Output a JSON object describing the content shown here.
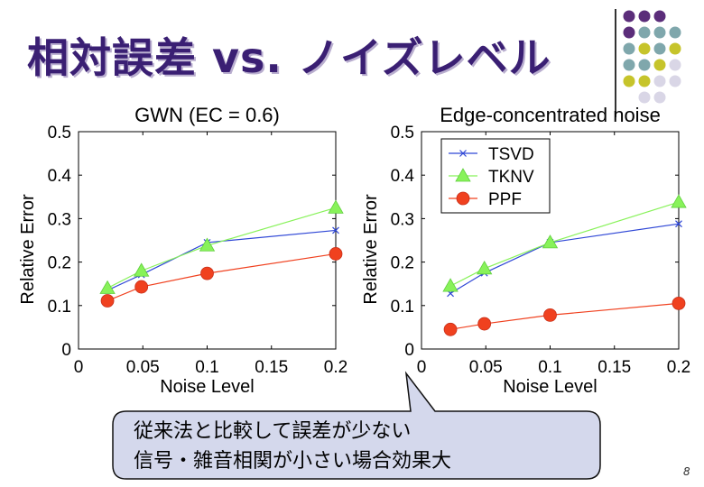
{
  "slide": {
    "title": "相対誤差 vs. ノイズレベル",
    "page_number": "8",
    "callout_lines": [
      "従来法と比較して誤差が少ない",
      "信号・雑音相関が小さい場合効果大"
    ]
  },
  "colors": {
    "title": "#3a1f73",
    "callout_fill": "#d4d8ec",
    "tsvd": "#2f47d6",
    "tknv": "#88f25a",
    "ppf": "#f0411f",
    "dot_purple": "#5b2d7a",
    "dot_teal": "#7fa7ac",
    "dot_olive": "#c6c42b",
    "dot_lavender": "#d9d6e6"
  },
  "chart_data": [
    {
      "type": "line",
      "title": "GWN (EC = 0.6)",
      "xlabel": "Noise Level",
      "ylabel": "Relative Error",
      "xlim": [
        0,
        0.2
      ],
      "ylim": [
        0,
        0.5
      ],
      "x_ticks": [
        "0",
        "0.05",
        "0.1",
        "0.15",
        "0.2"
      ],
      "y_ticks": [
        "0",
        "0.1",
        "0.2",
        "0.3",
        "0.4",
        "0.5"
      ],
      "x": [
        0.0225,
        0.0489,
        0.1,
        0.2
      ],
      "series": [
        {
          "name": "TSVD",
          "marker": "x",
          "values": [
            0.135,
            0.171,
            0.245,
            0.273
          ]
        },
        {
          "name": "TKNV",
          "marker": "triangle",
          "values": [
            0.14,
            0.18,
            0.238,
            0.325
          ]
        },
        {
          "name": "PPF",
          "marker": "circle",
          "values": [
            0.111,
            0.143,
            0.174,
            0.219
          ]
        }
      ],
      "legend": "none",
      "grid": false
    },
    {
      "type": "line",
      "title": "Edge-concentrated noise",
      "xlabel": "Noise Level",
      "ylabel": "Relative Error",
      "xlim": [
        0,
        0.2
      ],
      "ylim": [
        0,
        0.5
      ],
      "x_ticks": [
        "0",
        "0.05",
        "0.1",
        "0.15",
        "0.2"
      ],
      "y_ticks": [
        "0",
        "0.1",
        "0.2",
        "0.3",
        "0.4",
        "0.5"
      ],
      "x": [
        0.0225,
        0.0489,
        0.1,
        0.2
      ],
      "series": [
        {
          "name": "TSVD",
          "marker": "x",
          "values": [
            0.128,
            0.175,
            0.245,
            0.288
          ]
        },
        {
          "name": "TKNV",
          "marker": "triangle",
          "values": [
            0.145,
            0.185,
            0.245,
            0.338
          ]
        },
        {
          "name": "PPF",
          "marker": "circle",
          "values": [
            0.045,
            0.058,
            0.078,
            0.105
          ]
        }
      ],
      "legend": "top-left",
      "grid": false
    }
  ]
}
